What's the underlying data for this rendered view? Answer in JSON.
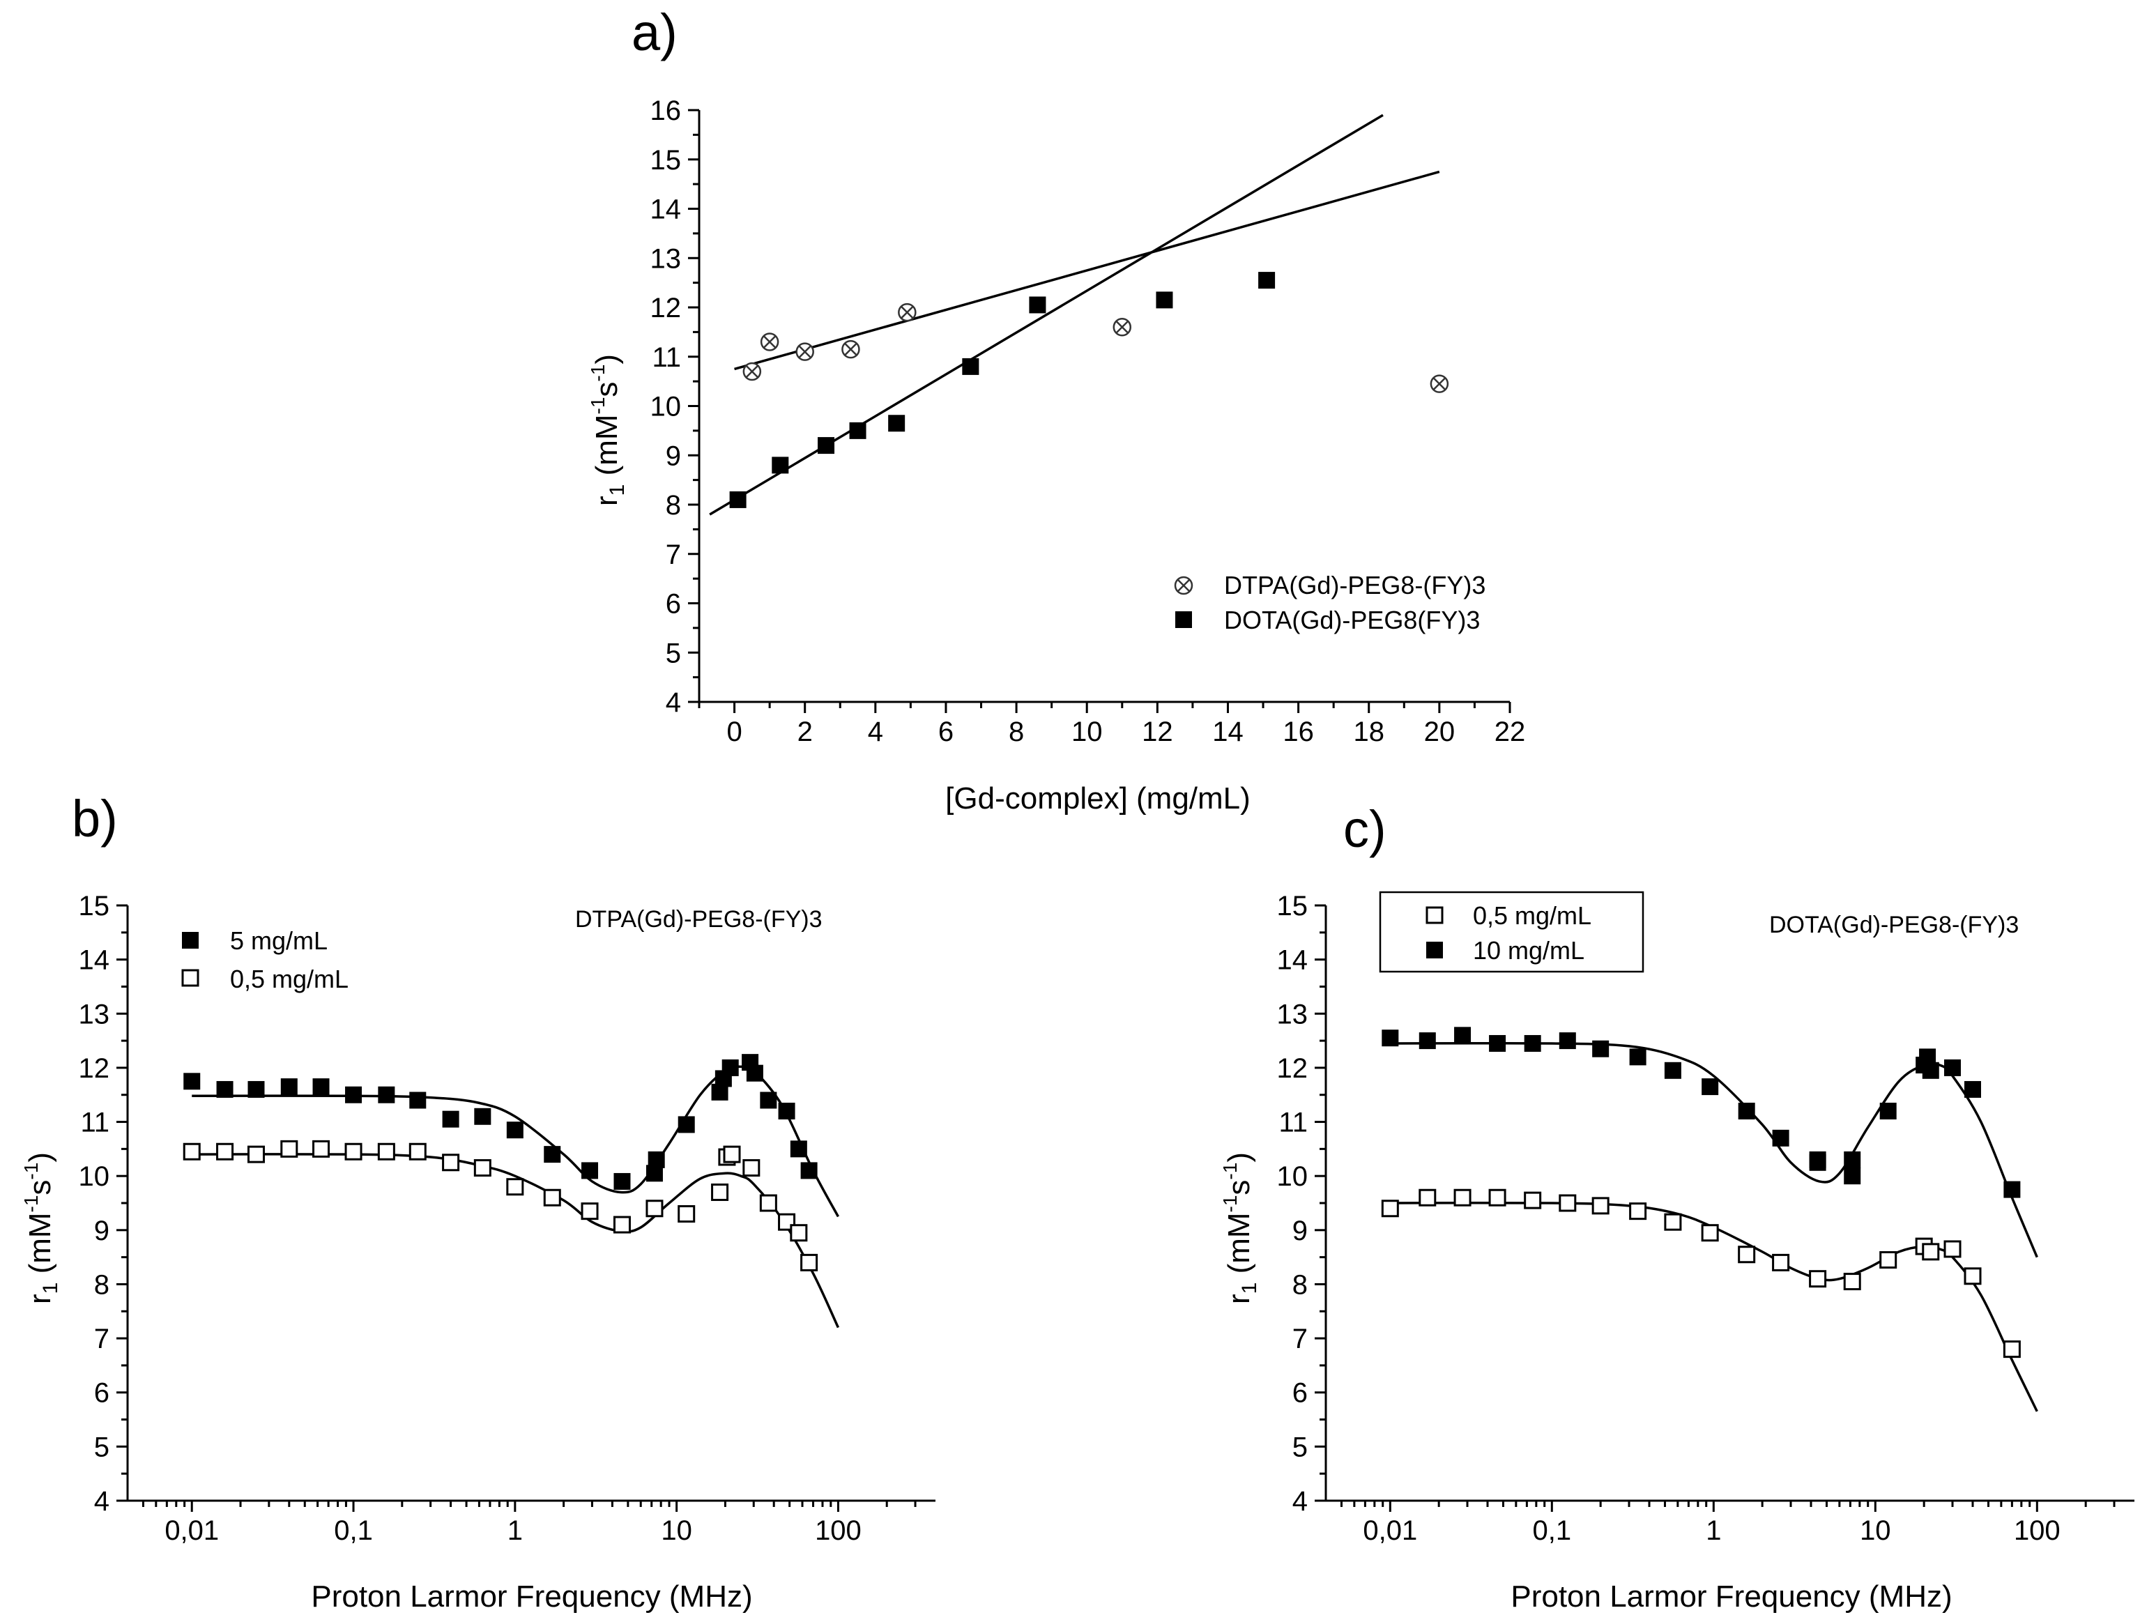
{
  "chart_data": [
    {
      "id": "a",
      "panel_label": "a)",
      "type": "scatter",
      "xlabel": "[Gd-complex] (mg/mL)",
      "ylabel": "r₁ (mM⁻¹s⁻¹)",
      "xlim": [
        -1,
        22
      ],
      "ylim": [
        4,
        16
      ],
      "xticks": [
        0,
        2,
        4,
        6,
        8,
        10,
        12,
        14,
        16,
        18,
        20,
        22
      ],
      "yticks": [
        4,
        5,
        6,
        7,
        8,
        9,
        10,
        11,
        12,
        13,
        14,
        15,
        16
      ],
      "xtick_labels": [
        "0",
        "2",
        "4",
        "6",
        "8",
        "10",
        "12",
        "14",
        "16",
        "18",
        "20",
        "22"
      ],
      "ytick_labels": [
        "4",
        "5",
        "6",
        "7",
        "8",
        "9",
        "10",
        "11",
        "12",
        "13",
        "14",
        "15",
        "16"
      ],
      "legend_position": "lower-right",
      "series": [
        {
          "name": "DTPA(Gd)-PEG8-(FY)3",
          "marker": "circle-x",
          "x": [
            0.5,
            1.0,
            2.0,
            3.3,
            4.9,
            11.0,
            20.0
          ],
          "y": [
            10.7,
            11.3,
            11.1,
            11.15,
            11.9,
            11.6,
            10.45
          ]
        },
        {
          "name": "DOTA(Gd)-PEG8(FY)3",
          "marker": "filled-square",
          "x": [
            0.1,
            1.3,
            2.6,
            3.5,
            4.6,
            6.7,
            8.6,
            12.2,
            15.1
          ],
          "y": [
            8.1,
            8.8,
            9.2,
            9.5,
            9.65,
            10.8,
            12.05,
            12.15,
            12.55
          ]
        }
      ],
      "fits": [
        {
          "name": "DTPA linear fit",
          "x": [
            0.0,
            20.0
          ],
          "y": [
            10.75,
            14.75
          ]
        },
        {
          "name": "DOTA linear fit",
          "x": [
            -0.7,
            18.4
          ],
          "y": [
            7.8,
            15.9
          ]
        }
      ]
    },
    {
      "id": "b",
      "panel_label": "b)",
      "type": "scatter",
      "annotation": "DTPA(Gd)-PEG8-(FY)3",
      "xlabel": "Proton Larmor Frequency (MHz)",
      "ylabel": "r₁ (mM⁻¹s⁻¹)",
      "xscale": "log",
      "xlim": [
        0.004,
        400
      ],
      "ylim": [
        4,
        15
      ],
      "xticks": [
        0.01,
        0.1,
        1,
        10,
        100
      ],
      "xtick_labels": [
        "0,01",
        "0,1",
        "1",
        "10",
        "100"
      ],
      "yticks": [
        4,
        5,
        6,
        7,
        8,
        9,
        10,
        11,
        12,
        13,
        14,
        15
      ],
      "ytick_labels": [
        "4",
        "5",
        "6",
        "7",
        "8",
        "9",
        "10",
        "11",
        "12",
        "13",
        "14",
        "15"
      ],
      "legend_position": "top-left",
      "series": [
        {
          "name": "5 mg/mL",
          "marker": "filled-square",
          "x": [
            0.01,
            0.016,
            0.025,
            0.04,
            0.063,
            0.1,
            0.16,
            0.25,
            0.4,
            0.63,
            1.0,
            1.7,
            2.9,
            4.6,
            7.3,
            7.5,
            11.5,
            18.5,
            19.5,
            21.5,
            28.5,
            30.5,
            37,
            48,
            57,
            66
          ],
          "y": [
            11.75,
            11.6,
            11.6,
            11.65,
            11.65,
            11.5,
            11.5,
            11.4,
            11.05,
            11.1,
            10.85,
            10.4,
            10.1,
            9.9,
            10.05,
            10.3,
            10.95,
            11.55,
            11.8,
            12.0,
            12.1,
            11.9,
            11.4,
            11.2,
            10.5,
            10.1
          ]
        },
        {
          "name": "0,5 mg/mL",
          "marker": "open-square",
          "x": [
            0.01,
            0.016,
            0.025,
            0.04,
            0.063,
            0.1,
            0.16,
            0.25,
            0.4,
            0.63,
            1.0,
            1.7,
            2.9,
            4.6,
            7.3,
            11.5,
            18.5,
            20.5,
            22,
            29,
            37,
            48,
            57,
            66
          ],
          "y": [
            10.45,
            10.45,
            10.4,
            10.5,
            10.5,
            10.45,
            10.45,
            10.45,
            10.25,
            10.15,
            9.8,
            9.6,
            9.35,
            9.1,
            9.4,
            9.3,
            9.7,
            10.35,
            10.4,
            10.15,
            9.5,
            9.15,
            8.95,
            8.4
          ]
        }
      ],
      "fits": [
        {
          "name": "5 mg/mL fit",
          "x": [
            0.01,
            0.1,
            0.3,
            0.6,
            1.0,
            2.0,
            3.0,
            4.5,
            6.0,
            9.0,
            14.0,
            20.0,
            25.0,
            30.0,
            45.0,
            70.0,
            100.0
          ],
          "y": [
            11.48,
            11.48,
            11.45,
            11.35,
            11.1,
            10.4,
            9.9,
            9.7,
            9.85,
            10.6,
            11.5,
            11.95,
            12.02,
            11.95,
            11.3,
            10.1,
            9.25
          ]
        },
        {
          "name": "0,5 mg/mL fit",
          "x": [
            0.01,
            0.1,
            0.3,
            0.6,
            1.0,
            2.0,
            3.0,
            4.5,
            6.0,
            9.0,
            14.0,
            20.0,
            25.0,
            30.0,
            45.0,
            70.0,
            100.0
          ],
          "y": [
            10.4,
            10.4,
            10.35,
            10.2,
            10.0,
            9.55,
            9.15,
            8.98,
            9.05,
            9.5,
            9.95,
            10.05,
            10.0,
            9.85,
            9.2,
            8.2,
            7.2
          ]
        }
      ]
    },
    {
      "id": "c",
      "panel_label": "c)",
      "type": "scatter",
      "annotation": "DOTA(Gd)-PEG8-(FY)3",
      "xlabel": "Proton Larmor Frequency (MHz)",
      "ylabel": "r₁ (mM⁻¹s⁻¹)",
      "xscale": "log",
      "xlim": [
        0.004,
        400
      ],
      "ylim": [
        4,
        15
      ],
      "xticks": [
        0.01,
        0.1,
        1,
        10,
        100
      ],
      "xtick_labels": [
        "0,01",
        "0,1",
        "1",
        "10",
        "100"
      ],
      "yticks": [
        4,
        5,
        6,
        7,
        8,
        9,
        10,
        11,
        12,
        13,
        14,
        15
      ],
      "ytick_labels": [
        "4",
        "5",
        "6",
        "7",
        "8",
        "9",
        "10",
        "11",
        "12",
        "13",
        "14",
        "15"
      ],
      "legend_position": "top-left",
      "series": [
        {
          "name": "0,5 mg/mL",
          "marker": "open-square",
          "x": [
            0.01,
            0.017,
            0.028,
            0.046,
            0.076,
            0.125,
            0.2,
            0.34,
            0.56,
            0.95,
            1.6,
            2.6,
            4.4,
            7.2,
            12,
            20,
            22,
            30,
            40,
            70
          ],
          "y": [
            9.4,
            9.6,
            9.6,
            9.6,
            9.55,
            9.5,
            9.45,
            9.35,
            9.15,
            8.95,
            8.55,
            8.4,
            8.1,
            8.05,
            8.45,
            8.7,
            8.6,
            8.65,
            8.15,
            6.8
          ]
        },
        {
          "name": "10 mg/mL",
          "marker": "filled-square",
          "x": [
            0.01,
            0.017,
            0.028,
            0.046,
            0.076,
            0.125,
            0.2,
            0.34,
            0.56,
            0.95,
            1.6,
            2.6,
            4.4,
            4.4,
            7.2,
            7.2,
            12,
            20,
            21,
            22,
            30,
            40,
            70
          ],
          "y": [
            12.55,
            12.5,
            12.6,
            12.45,
            12.45,
            12.5,
            12.35,
            12.2,
            11.95,
            11.65,
            11.2,
            10.7,
            10.3,
            10.25,
            10.3,
            10.0,
            11.2,
            12.05,
            12.2,
            11.95,
            12.0,
            11.6,
            9.75
          ]
        }
      ],
      "fits": [
        {
          "name": "10 mg/mL fit",
          "x": [
            0.01,
            0.1,
            0.3,
            0.6,
            1.0,
            2.0,
            3.0,
            4.5,
            6.0,
            9.0,
            14.0,
            20.0,
            25.0,
            30.0,
            45.0,
            70.0,
            100.0
          ],
          "y": [
            12.45,
            12.45,
            12.4,
            12.2,
            11.85,
            10.95,
            10.25,
            9.9,
            10.05,
            10.9,
            11.75,
            12.05,
            12.05,
            11.85,
            11.0,
            9.6,
            8.5
          ]
        },
        {
          "name": "0,5 mg/mL fit",
          "x": [
            0.01,
            0.1,
            0.3,
            0.6,
            1.0,
            2.0,
            3.0,
            4.5,
            6.0,
            9.0,
            14.0,
            20.0,
            25.0,
            30.0,
            45.0,
            70.0,
            100.0
          ],
          "y": [
            9.5,
            9.5,
            9.45,
            9.3,
            9.05,
            8.6,
            8.3,
            8.1,
            8.1,
            8.3,
            8.6,
            8.7,
            8.65,
            8.5,
            7.8,
            6.6,
            5.65
          ]
        }
      ]
    }
  ]
}
